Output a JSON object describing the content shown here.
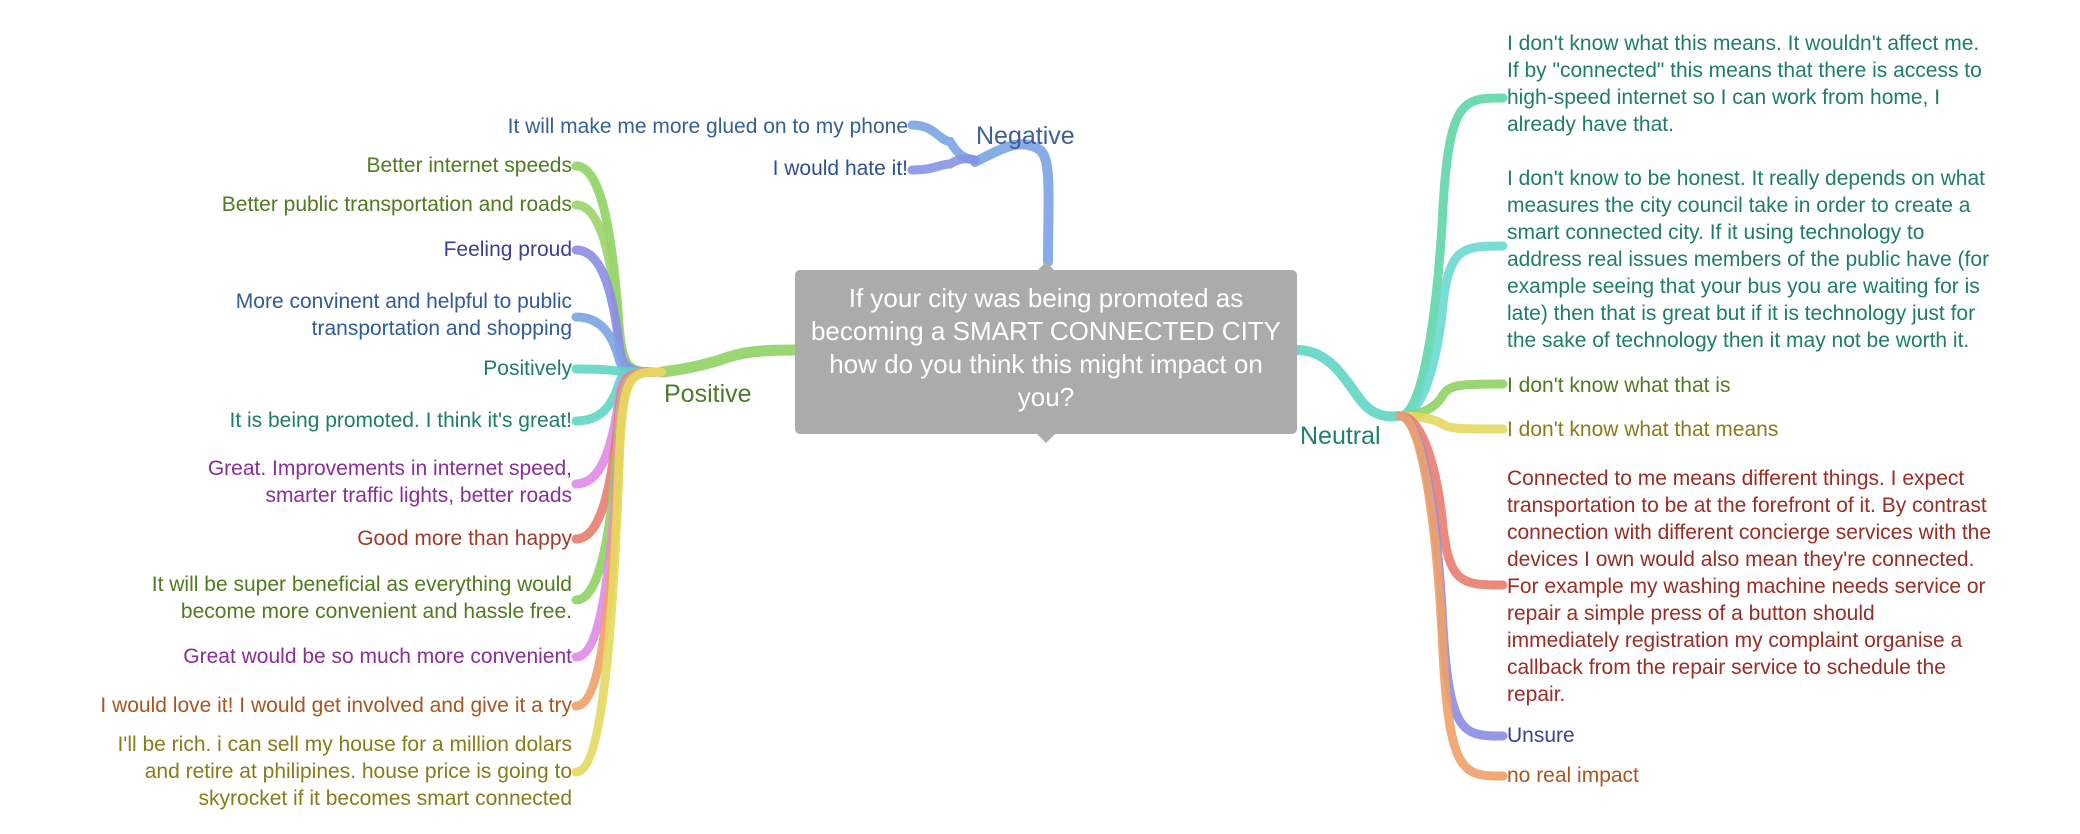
{
  "central_question": "If your city was being promoted as becoming a SMART CONNECTED CITY how do you think this might impact on you?",
  "branches": {
    "negative": {
      "label": "Negative",
      "color": "#3f5f9a"
    },
    "positive": {
      "label": "Positive",
      "color": "#4c7a2a"
    },
    "neutral": {
      "label": "Neutral",
      "color": "#1f7f70"
    }
  },
  "negative_items": [
    {
      "text": "It will make me more glued on to my phone",
      "color": "#34609a",
      "stroke": "#7aa4e4"
    },
    {
      "text": "I would hate it!",
      "color": "#2d4f93",
      "stroke": "#8694e6"
    }
  ],
  "positive_items": [
    {
      "text": "Better internet speeds",
      "color": "#4f7a1e",
      "stroke": "#8fd162"
    },
    {
      "text": "Better public transportation and roads",
      "color": "#4f7a1e",
      "stroke": "#9bd46a"
    },
    {
      "text": "Feeling proud",
      "color": "#3d3f93",
      "stroke": "#8c8ce4"
    },
    {
      "text": "More convinent and helpful to public transportation and shopping",
      "lines": [
        "More convinent and helpful to public",
        "transportation and shopping"
      ],
      "color": "#2f5b9a",
      "stroke": "#7aa4e4"
    },
    {
      "text": "Positively",
      "color": "#1e7d6a",
      "stroke": "#5fd6c4"
    },
    {
      "text": "It is being promoted. I think it's great!",
      "color": "#1e7d6a",
      "stroke": "#5fd6c4"
    },
    {
      "text": "Great. Improvements in internet speed, smarter traffic lights, better roads",
      "lines": [
        "Great. Improvements in internet speed,",
        "smarter traffic lights, better roads"
      ],
      "color": "#8a2c9a",
      "stroke": "#e08ae8"
    },
    {
      "text": "Good more than happy",
      "color": "#a03a2c",
      "stroke": "#e87c6e"
    },
    {
      "text": "It will be super beneficial as everything would become more convenient and hassle free.",
      "lines": [
        "It will be super beneficial as everything would",
        "become more convenient and hassle free."
      ],
      "color": "#4f7a1e",
      "stroke": "#8fd162"
    },
    {
      "text": "Great would be so much more convenient",
      "color": "#8a2c9a",
      "stroke": "#e08ae8"
    },
    {
      "text": "I would love it! I would get involved and give it a try",
      "color": "#a8561e",
      "stroke": "#f0a068"
    },
    {
      "text": "I'll be rich. i can sell my house for a million dolars and retire at philipines. house price is going to skyrocket if it becomes smart connected",
      "lines": [
        "I'll be rich. i can sell my house for a million dolars",
        "and retire at philipines. house price is going to",
        "skyrocket if it becomes smart connected"
      ],
      "color": "#8a7a1a",
      "stroke": "#e4d860"
    }
  ],
  "neutral_items": [
    {
      "text": "I don't know what this means. It wouldn't affect me. If by \"connected\" this means that there is access to high-speed internet so I can work from home, I already have that.",
      "lines": [
        "I don't know what this means. It wouldn't affect me.",
        "If by \"connected\" this means that there is access to",
        "high-speed internet so I can work from home, I",
        "already have that."
      ],
      "color": "#1e7d6a",
      "stroke": "#5fd6a8"
    },
    {
      "text": "I don't know to be honest. It really depends on what measures the city council take in order to create a smart connected city. If it using technology to address real issues members of the public have (for example seeing that your bus you are waiting for is late) then that is great but if it is technology just for the sake of technology then it may not be worth it.",
      "lines": [
        "I don't know to be honest. It really depends on what",
        "measures the city council take in order to create a",
        "smart connected city. If it using technology to",
        "address real issues members of the public have (for",
        "example seeing that your bus you are waiting for is",
        "late) then that is great but if it is technology just for",
        "the sake of technology then it may not be worth it."
      ],
      "color": "#1e7d6a",
      "stroke": "#6ad8d0"
    },
    {
      "text": "I don't know what that is",
      "color": "#4f7a1e",
      "stroke": "#8fd162"
    },
    {
      "text": "I don't know what that means",
      "color": "#8a7a1a",
      "stroke": "#e4d860"
    },
    {
      "text": "Connected to me means different things. I expect transportation to be at the forefront of it. By contrast connection with different concierge services with the devices I own would also mean they're connected. For example my washing machine needs service or repair a simple press of a button should immediately registration my complaint organise a callback from the repair service to schedule the repair.",
      "lines": [
        "Connected to me means different things. I expect",
        "transportation to be at the forefront of it. By contrast",
        "connection with different concierge services with the",
        "devices I own would also mean they're connected.",
        "For example my washing machine needs service or",
        "repair a simple press of a button should",
        "immediately registration my complaint organise a",
        "callback from the repair service to schedule the",
        "repair."
      ],
      "color": "#9a2c24",
      "stroke": "#e87c6e"
    },
    {
      "text": "Unsure",
      "color": "#3d3f93",
      "stroke": "#8c8ce4"
    },
    {
      "text": "no real impact",
      "color": "#a8561e",
      "stroke": "#f0a068"
    }
  ]
}
